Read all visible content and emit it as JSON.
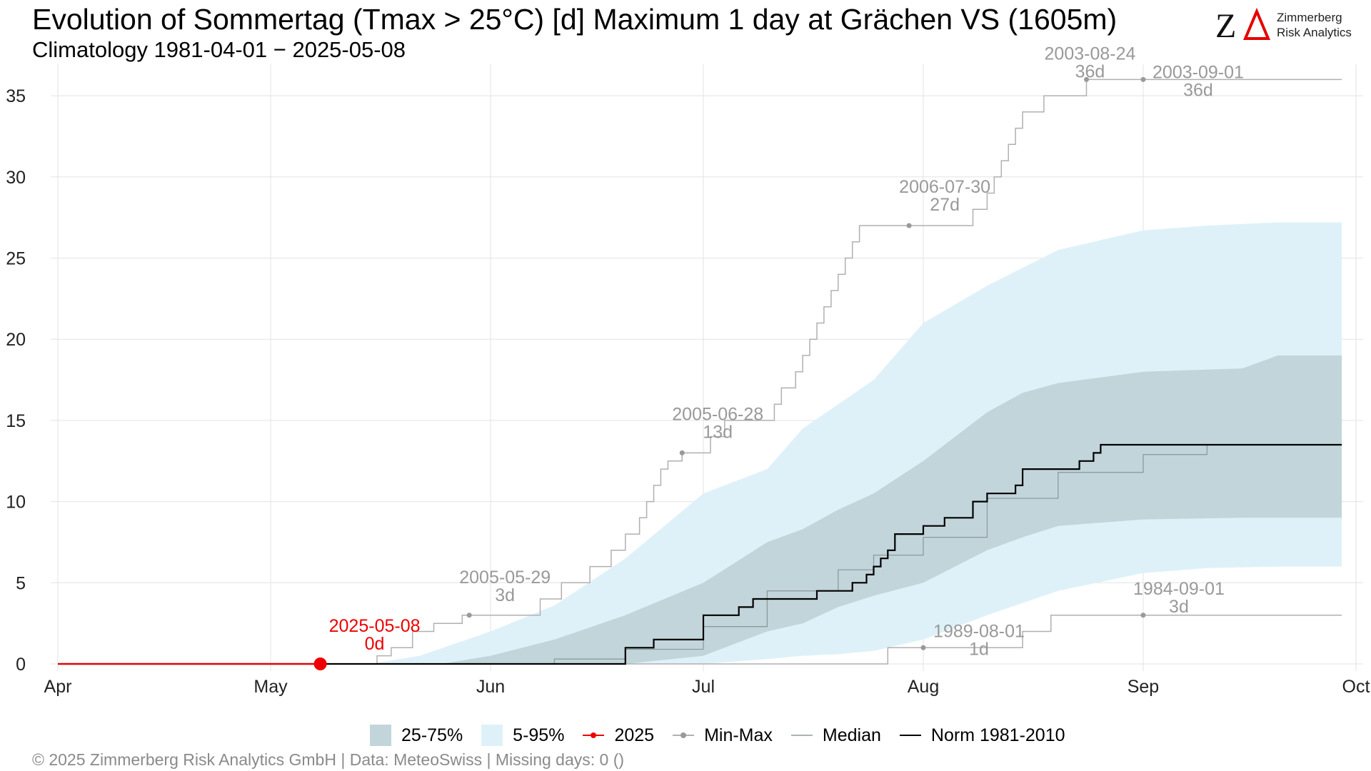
{
  "header": {
    "title": "Evolution of Sommertag (Tmax > 25°C) [d] Maximum 1 day at Grächen  VS (1605m)",
    "subtitle": "Climatology 1981-04-01 − 2025-05-08"
  },
  "logo": {
    "line1": "Zimmerberg",
    "line2": "Risk Analytics",
    "mark": "ZΔ"
  },
  "colors": {
    "band_25_75": "#c2d5da",
    "band_5_95": "#dff1f8",
    "current": "#ee0000",
    "minmax": "#b0b0b0",
    "minmax_point": "#999999",
    "median": "#8e9ba0",
    "norm": "#000000",
    "annotation": "#999999",
    "grid": "#e3e3e3"
  },
  "chart_data": {
    "type": "line",
    "title": "Evolution of Sommertag (Tmax > 25°C) [d] Maximum 1 day at Grächen  VS (1605m)",
    "subtitle": "Climatology 1981-04-01 − 2025-05-08",
    "xlabel": "",
    "ylabel": "",
    "x_tick_labels": [
      "Apr",
      "May",
      "Jun",
      "Jul",
      "Aug",
      "Sep",
      "Oct"
    ],
    "x_tick_dates": [
      "04-01",
      "05-01",
      "06-01",
      "07-01",
      "08-01",
      "09-01",
      "10-01"
    ],
    "xlim": [
      "04-01",
      "10-01"
    ],
    "ylim": [
      0,
      36.5
    ],
    "y_ticks": [
      0,
      5,
      10,
      15,
      20,
      25,
      30,
      35
    ],
    "grid": true,
    "legend_position": "bottom",
    "legend": [
      "25-75%",
      "5-95%",
      "2025",
      "Min-Max",
      "Median",
      "Norm 1981-2010"
    ],
    "series": [
      {
        "name": "5-95%",
        "kind": "band",
        "x": [
          "05-15",
          "05-22",
          "06-01",
          "06-10",
          "06-20",
          "07-01",
          "07-10",
          "07-15",
          "07-20",
          "07-25",
          "08-01",
          "08-10",
          "08-20",
          "09-01",
          "09-10",
          "09-20",
          "09-29"
        ],
        "low": [
          0,
          0,
          0,
          0,
          0,
          0,
          0.3,
          0.5,
          0.6,
          0.8,
          1.5,
          3.0,
          4.5,
          5.6,
          5.9,
          6.0,
          6.0
        ],
        "high": [
          0,
          0.5,
          2.0,
          3.6,
          6.5,
          10.5,
          12.0,
          14.5,
          16.0,
          17.5,
          21.0,
          23.3,
          25.5,
          26.7,
          27.0,
          27.2,
          27.2
        ]
      },
      {
        "name": "25-75%",
        "kind": "band",
        "x": [
          "05-25",
          "06-01",
          "06-10",
          "06-20",
          "07-01",
          "07-10",
          "07-15",
          "07-20",
          "07-25",
          "08-01",
          "08-10",
          "08-15",
          "08-20",
          "09-01",
          "09-15",
          "09-20",
          "09-29"
        ],
        "low": [
          0,
          0,
          0,
          0,
          0.5,
          2.0,
          2.5,
          3.5,
          4.2,
          5.0,
          7.0,
          7.8,
          8.5,
          8.9,
          9.0,
          9.0,
          9.0
        ],
        "high": [
          0,
          0.5,
          1.5,
          3.0,
          5.0,
          7.5,
          8.3,
          9.5,
          10.5,
          12.5,
          15.5,
          16.7,
          17.3,
          18.0,
          18.2,
          19.0,
          19.0
        ]
      },
      {
        "name": "Median",
        "kind": "step",
        "x": [
          "04-01",
          "06-01",
          "06-10",
          "06-20",
          "07-01",
          "07-10",
          "07-20",
          "07-25",
          "08-01",
          "08-10",
          "08-20",
          "09-01",
          "09-10",
          "09-29"
        ],
        "y": [
          0,
          0,
          0.3,
          0.9,
          2.3,
          4.5,
          5.8,
          6.7,
          7.8,
          10.2,
          11.8,
          12.9,
          13.5,
          13.5
        ]
      },
      {
        "name": "Norm 1981-2010",
        "kind": "step",
        "x": [
          "04-01",
          "06-20",
          "06-24",
          "07-01",
          "07-06",
          "07-08",
          "07-12",
          "07-17",
          "07-22",
          "07-24",
          "07-25",
          "07-26",
          "07-27",
          "07-28",
          "07-30",
          "08-01",
          "08-04",
          "08-05",
          "08-08",
          "08-10",
          "08-14",
          "08-15",
          "08-23",
          "08-25",
          "08-26",
          "08-27",
          "09-29"
        ],
        "y": [
          0,
          1,
          1.5,
          3,
          3.5,
          4,
          4,
          4.5,
          5,
          5.5,
          6,
          6.5,
          7,
          8,
          8,
          8.5,
          9,
          9,
          10,
          10.5,
          11,
          12,
          12.5,
          13,
          13.5,
          13.5,
          13.5
        ]
      },
      {
        "name": "Min-Max (max)",
        "kind": "step",
        "x": [
          "04-01",
          "05-16",
          "05-18",
          "05-21",
          "05-24",
          "05-28",
          "06-08",
          "06-11",
          "06-15",
          "06-18",
          "06-20",
          "06-22",
          "06-23",
          "06-24",
          "06-25",
          "06-26",
          "06-28",
          "07-02",
          "07-04",
          "07-11",
          "07-12",
          "07-14",
          "07-15",
          "07-16",
          "07-17",
          "07-18",
          "07-19",
          "07-20",
          "07-21",
          "07-22",
          "07-23",
          "07-24",
          "07-25",
          "07-26",
          "07-27",
          "07-30",
          "08-08",
          "08-10",
          "08-11",
          "08-12",
          "08-13",
          "08-14",
          "08-15",
          "08-18",
          "08-24",
          "09-29"
        ],
        "y": [
          0,
          0.5,
          1,
          2,
          2.5,
          3,
          4,
          5,
          6,
          7,
          8,
          9,
          10,
          11,
          12,
          12.5,
          13,
          14,
          15,
          16,
          17,
          18,
          19,
          20,
          21,
          22,
          23,
          24,
          25,
          26,
          27,
          27,
          27,
          27,
          27,
          27,
          28,
          29,
          30,
          31,
          32,
          33,
          34,
          35,
          36,
          36
        ]
      },
      {
        "name": "Min-Max (min)",
        "kind": "step",
        "x": [
          "04-01",
          "07-27",
          "08-15",
          "08-19",
          "09-29"
        ],
        "y": [
          0,
          1,
          2,
          3,
          3
        ]
      },
      {
        "name": "2025",
        "kind": "line",
        "x": [
          "04-01",
          "05-08"
        ],
        "y": [
          0,
          0
        ]
      }
    ],
    "annotations": [
      {
        "date": "05-08",
        "date_label": "2025-05-08",
        "value": 0,
        "value_label": "0d",
        "series": "2025"
      },
      {
        "date": "05-29",
        "date_label": "2005-05-29",
        "value": 3,
        "value_label": "3d",
        "series": "Min-Max"
      },
      {
        "date": "06-28",
        "date_label": "2005-06-28",
        "value": 13,
        "value_label": "13d",
        "series": "Min-Max"
      },
      {
        "date": "07-30",
        "date_label": "2006-07-30",
        "value": 27,
        "value_label": "27d",
        "series": "Min-Max"
      },
      {
        "date": "08-24",
        "date_label": "2003-08-24",
        "value": 36,
        "value_label": "36d",
        "series": "Min-Max"
      },
      {
        "date": "09-01",
        "date_label": "2003-09-01",
        "value": 36,
        "value_label": "36d",
        "series": "Min-Max"
      },
      {
        "date": "08-01",
        "date_label": "1989-08-01",
        "value": 1,
        "value_label": "1d",
        "series": "Min-Max"
      },
      {
        "date": "09-01",
        "date_label": "1984-09-01",
        "value": 3,
        "value_label": "3d",
        "series": "Min-Max"
      }
    ]
  },
  "legend": {
    "band_25_75": "25-75%",
    "band_5_95": "5-95%",
    "current": "2025",
    "minmax": "Min-Max",
    "median": "Median",
    "norm": "Norm 1981-2010"
  },
  "footer": "©  2025 Zimmerberg Risk Analytics GmbH | Data: MeteoSwiss | Missing days: 0 ()"
}
